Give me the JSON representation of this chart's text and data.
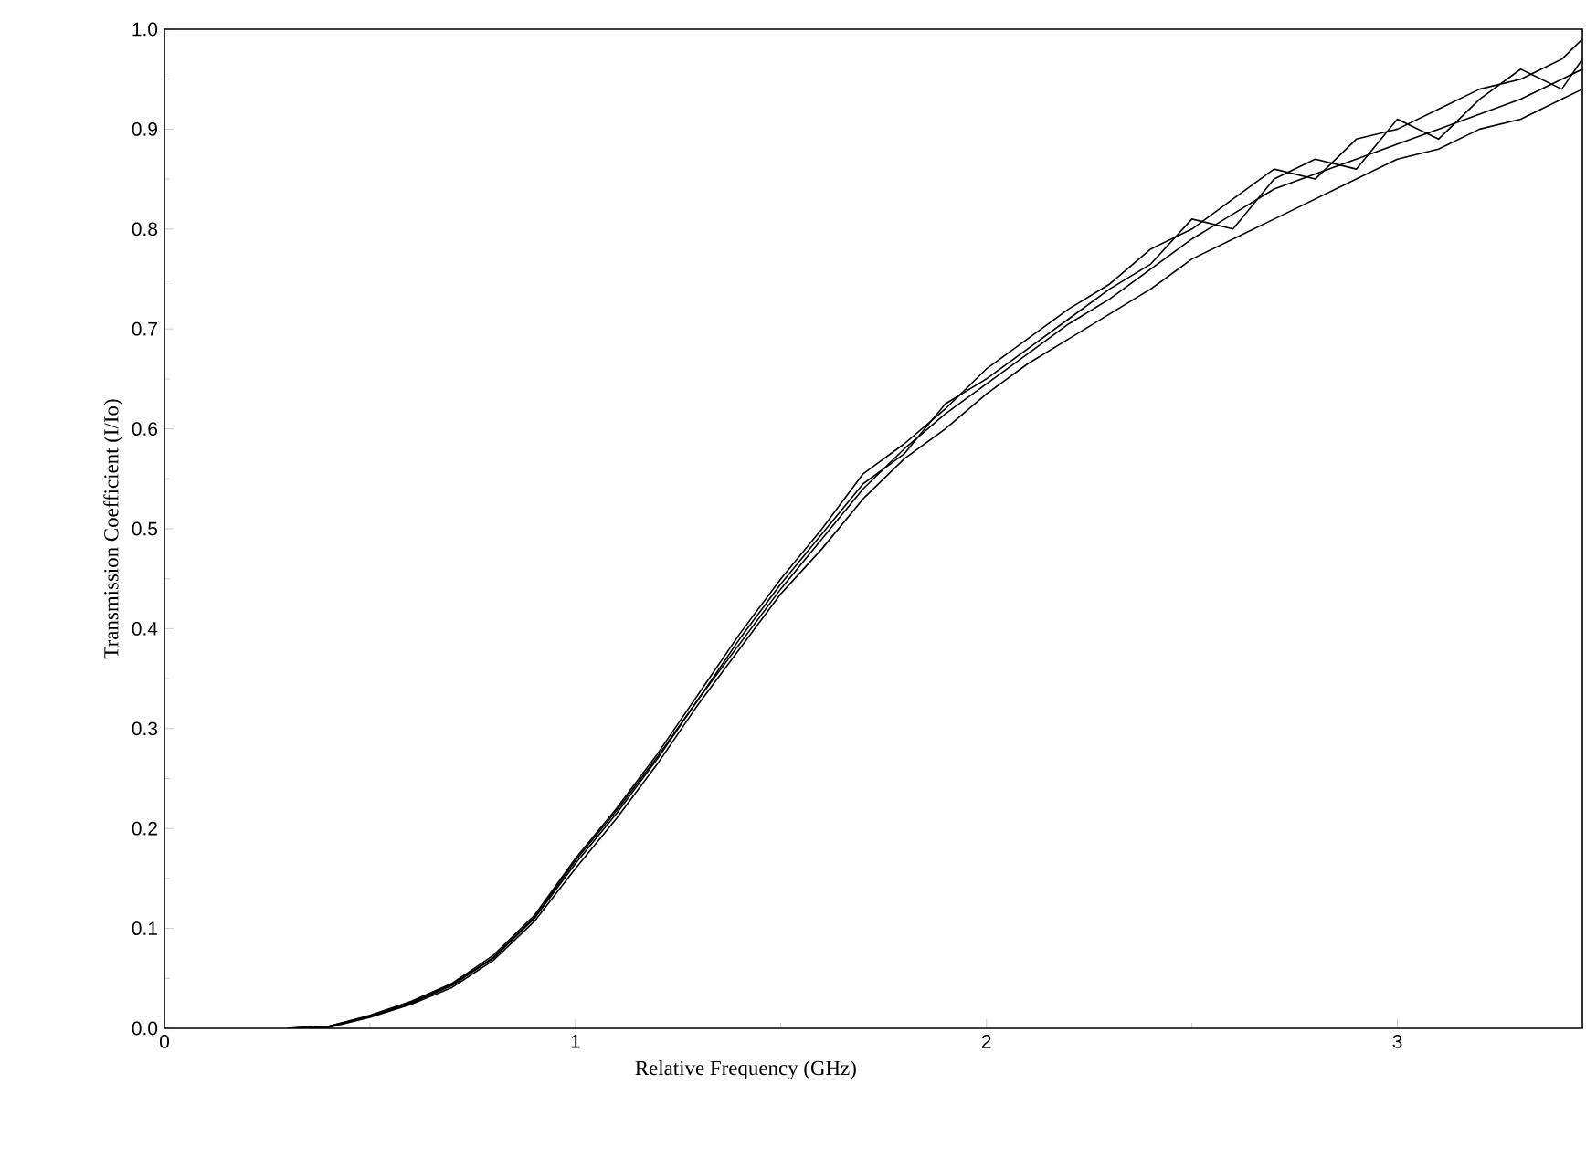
{
  "chart_data": {
    "type": "line",
    "xlabel": "Relative Frequency (GHz)",
    "ylabel": "Transmission Coefficient (I/Io)",
    "x": [
      0.3,
      0.4,
      0.5,
      0.6,
      0.7,
      0.8,
      0.9,
      1.0,
      1.1,
      1.2,
      1.3,
      1.4,
      1.5,
      1.6,
      1.7,
      1.8,
      1.9,
      2.0,
      2.1,
      2.2,
      2.3,
      2.4,
      2.5,
      2.6,
      2.7,
      2.8,
      2.9,
      3.0,
      3.1,
      3.2,
      3.3,
      3.4,
      3.45
    ],
    "series": [
      {
        "color": "#000000",
        "values": [
          0,
          0.002,
          0.012,
          0.025,
          0.043,
          0.07,
          0.11,
          0.165,
          0.215,
          0.27,
          0.33,
          0.385,
          0.44,
          0.49,
          0.54,
          0.58,
          0.615,
          0.645,
          0.675,
          0.705,
          0.73,
          0.76,
          0.79,
          0.815,
          0.84,
          0.855,
          0.87,
          0.885,
          0.9,
          0.915,
          0.93,
          0.95,
          0.96
        ]
      },
      {
        "color": "#000000",
        "values": [
          0,
          0.002,
          0.013,
          0.027,
          0.045,
          0.073,
          0.113,
          0.17,
          0.22,
          0.275,
          0.335,
          0.395,
          0.45,
          0.5,
          0.555,
          0.585,
          0.62,
          0.66,
          0.69,
          0.72,
          0.745,
          0.78,
          0.8,
          0.83,
          0.86,
          0.85,
          0.89,
          0.9,
          0.92,
          0.94,
          0.95,
          0.97,
          0.99
        ]
      },
      {
        "color": "#000000",
        "values": [
          0,
          0.001,
          0.011,
          0.024,
          0.041,
          0.068,
          0.107,
          0.16,
          0.21,
          0.265,
          0.325,
          0.38,
          0.435,
          0.48,
          0.53,
          0.57,
          0.6,
          0.635,
          0.665,
          0.69,
          0.715,
          0.74,
          0.77,
          0.79,
          0.81,
          0.83,
          0.85,
          0.87,
          0.88,
          0.9,
          0.91,
          0.93,
          0.94
        ]
      },
      {
        "color": "#000000",
        "values": [
          0,
          0.002,
          0.012,
          0.026,
          0.044,
          0.071,
          0.111,
          0.168,
          0.218,
          0.272,
          0.33,
          0.39,
          0.445,
          0.495,
          0.545,
          0.575,
          0.625,
          0.65,
          0.68,
          0.71,
          0.74,
          0.765,
          0.81,
          0.8,
          0.85,
          0.87,
          0.86,
          0.91,
          0.89,
          0.93,
          0.96,
          0.94,
          0.97
        ]
      }
    ],
    "xlim": [
      0,
      3.45
    ],
    "ylim": [
      0,
      1.0
    ],
    "xticks": [
      {
        "value": 0,
        "label": "0"
      },
      {
        "value": 1,
        "label": "1"
      },
      {
        "value": 2,
        "label": "2"
      },
      {
        "value": 3,
        "label": "3"
      }
    ],
    "yticks": [
      {
        "value": 0,
        "label": "0.0"
      },
      {
        "value": 0.1,
        "label": "0.1"
      },
      {
        "value": 0.2,
        "label": "0.2"
      },
      {
        "value": 0.3,
        "label": "0.3"
      },
      {
        "value": 0.4,
        "label": "0.4"
      },
      {
        "value": 0.5,
        "label": "0.5"
      },
      {
        "value": 0.6,
        "label": "0.6"
      },
      {
        "value": 0.7,
        "label": "0.7"
      },
      {
        "value": 0.8,
        "label": "0.8"
      },
      {
        "value": 0.9,
        "label": "0.9"
      },
      {
        "value": 1.0,
        "label": "1.0"
      }
    ],
    "grid": false
  }
}
